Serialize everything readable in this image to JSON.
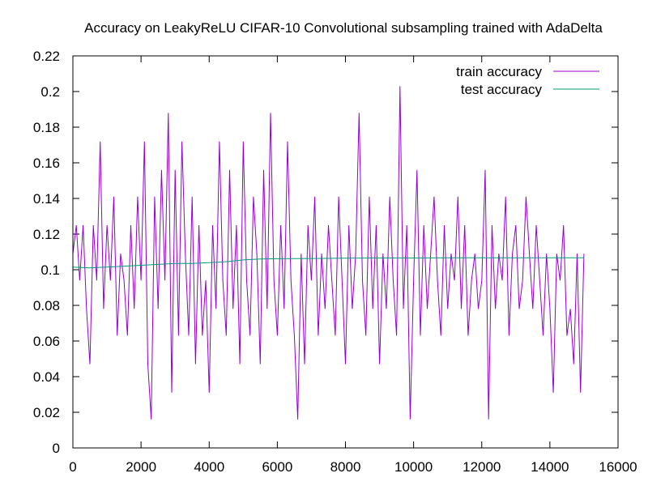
{
  "chart_data": {
    "type": "line",
    "title": "Accuracy on LeakyReLU CIFAR-10 Convolutional subsampling trained with AdaDelta",
    "xlabel": "",
    "ylabel": "",
    "xlim": [
      0,
      16000
    ],
    "ylim": [
      0,
      0.22
    ],
    "xticks": [
      0,
      2000,
      4000,
      6000,
      8000,
      10000,
      12000,
      14000,
      16000
    ],
    "xtick_labels": [
      "0",
      "2000",
      "4000",
      "6000",
      "8000",
      "10000",
      "12000",
      "14000",
      "16000"
    ],
    "yticks": [
      0,
      0.02,
      0.04,
      0.06,
      0.08,
      0.1,
      0.12,
      0.14,
      0.16,
      0.18,
      0.2,
      0.22
    ],
    "ytick_labels": [
      "0",
      "0.02",
      "0.04",
      "0.06",
      "0.08",
      "0.1",
      "0.12",
      "0.14",
      "0.16",
      "0.18",
      "0.2",
      "0.22"
    ],
    "grid": false,
    "legend_position": "top-right",
    "series": [
      {
        "name": "train accuracy",
        "color": "#9400d3",
        "x": [
          0,
          100,
          200,
          300,
          400,
          500,
          600,
          700,
          800,
          900,
          1000,
          1100,
          1200,
          1300,
          1400,
          1500,
          1600,
          1700,
          1800,
          1900,
          2000,
          2100,
          2200,
          2300,
          2400,
          2500,
          2600,
          2700,
          2800,
          2900,
          3000,
          3100,
          3200,
          3300,
          3400,
          3500,
          3600,
          3700,
          3800,
          3900,
          4000,
          4100,
          4200,
          4300,
          4400,
          4500,
          4600,
          4700,
          4800,
          4900,
          5000,
          5100,
          5200,
          5300,
          5400,
          5500,
          5600,
          5700,
          5800,
          5900,
          6000,
          6100,
          6200,
          6300,
          6400,
          6500,
          6600,
          6700,
          6800,
          6900,
          7000,
          7100,
          7200,
          7300,
          7400,
          7500,
          7600,
          7700,
          7800,
          7900,
          8000,
          8100,
          8200,
          8300,
          8400,
          8500,
          8600,
          8700,
          8800,
          8900,
          9000,
          9100,
          9200,
          9300,
          9400,
          9500,
          9600,
          9700,
          9800,
          9900,
          10000,
          10100,
          10200,
          10300,
          10400,
          10500,
          10600,
          10700,
          10800,
          10900,
          11000,
          11100,
          11200,
          11300,
          11400,
          11500,
          11600,
          11700,
          11800,
          11900,
          12000,
          12100,
          12200,
          12300,
          12400,
          12500,
          12600,
          12700,
          12800,
          12900,
          13000,
          13100,
          13200,
          13300,
          13400,
          13500,
          13600,
          13700,
          13800,
          13900,
          14000,
          14100,
          14200,
          14300,
          14400,
          14500,
          14600,
          14700,
          14800,
          14900,
          15000
        ],
        "values": [
          0.109,
          0.125,
          0.094,
          0.125,
          0.078,
          0.047,
          0.125,
          0.094,
          0.172,
          0.078,
          0.125,
          0.094,
          0.141,
          0.063,
          0.109,
          0.094,
          0.063,
          0.125,
          0.078,
          0.141,
          0.094,
          0.172,
          0.047,
          0.016,
          0.141,
          0.078,
          0.156,
          0.094,
          0.188,
          0.031,
          0.156,
          0.063,
          0.172,
          0.109,
          0.063,
          0.141,
          0.047,
          0.125,
          0.063,
          0.094,
          0.031,
          0.125,
          0.078,
          0.172,
          0.094,
          0.063,
          0.156,
          0.078,
          0.125,
          0.047,
          0.172,
          0.094,
          0.063,
          0.141,
          0.109,
          0.047,
          0.156,
          0.078,
          0.188,
          0.094,
          0.063,
          0.125,
          0.078,
          0.172,
          0.094,
          0.063,
          0.016,
          0.109,
          0.047,
          0.125,
          0.094,
          0.141,
          0.063,
          0.109,
          0.078,
          0.125,
          0.094,
          0.063,
          0.141,
          0.094,
          0.047,
          0.125,
          0.078,
          0.109,
          0.188,
          0.094,
          0.063,
          0.141,
          0.078,
          0.125,
          0.047,
          0.109,
          0.078,
          0.141,
          0.094,
          0.063,
          0.203,
          0.078,
          0.125,
          0.016,
          0.094,
          0.156,
          0.063,
          0.125,
          0.078,
          0.109,
          0.141,
          0.094,
          0.063,
          0.125,
          0.078,
          0.109,
          0.094,
          0.141,
          0.078,
          0.125,
          0.063,
          0.094,
          0.109,
          0.078,
          0.094,
          0.156,
          0.016,
          0.125,
          0.078,
          0.109,
          0.094,
          0.141,
          0.063,
          0.109,
          0.125,
          0.078,
          0.094,
          0.141,
          0.109,
          0.078,
          0.125,
          0.094,
          0.063,
          0.109,
          0.078,
          0.031,
          0.109,
          0.094,
          0.125,
          0.063,
          0.078,
          0.047,
          0.109,
          0.031,
          0.109
        ]
      },
      {
        "name": "test accuracy",
        "color": "#009e73",
        "x": [
          0,
          500,
          1000,
          1500,
          2000,
          2500,
          3000,
          3500,
          4000,
          4500,
          5000,
          5500,
          6000,
          7000,
          8000,
          9000,
          10000,
          11000,
          12000,
          13000,
          14000,
          15000
        ],
        "values": [
          0.1015,
          0.101,
          0.1015,
          0.102,
          0.1025,
          0.103,
          0.1035,
          0.1035,
          0.104,
          0.1045,
          0.1055,
          0.106,
          0.1062,
          0.1063,
          0.1065,
          0.1066,
          0.1066,
          0.1067,
          0.1067,
          0.1067,
          0.1067,
          0.1067
        ]
      }
    ]
  }
}
